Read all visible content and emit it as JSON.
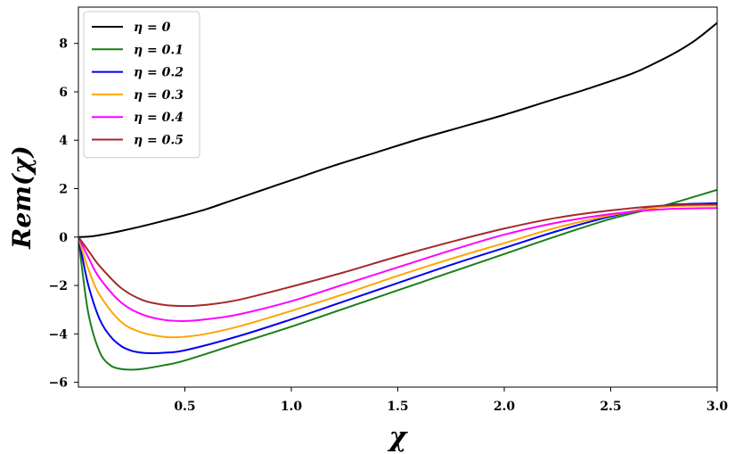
{
  "chart_data": {
    "type": "line",
    "xlabel": "χ",
    "ylabel": "Rem(χ)",
    "xlim": [
      0.0,
      3.0
    ],
    "ylim": [
      -6.2,
      9.5
    ],
    "xticks": [
      0.5,
      1.0,
      1.5,
      2.0,
      2.5,
      3.0
    ],
    "xtick_labels": [
      "0.5",
      "1.0",
      "1.5",
      "2.0",
      "2.5",
      "3.0"
    ],
    "yticks": [
      -6,
      -4,
      -2,
      0,
      2,
      4,
      6,
      8
    ],
    "ytick_labels": [
      "−6",
      "−4",
      "−2",
      "0",
      "2",
      "4",
      "6",
      "8"
    ],
    "grid": false,
    "legend_position": "top-left",
    "series": [
      {
        "name": "η = 0",
        "color": "#000000",
        "x": [
          0.0,
          0.05,
          0.1,
          0.2,
          0.3,
          0.4,
          0.5,
          0.6,
          0.7,
          0.8,
          0.9,
          1.0,
          1.2,
          1.4,
          1.6,
          1.8,
          2.0,
          2.2,
          2.4,
          2.6,
          2.7,
          2.8,
          2.9,
          3.0
        ],
        "y": [
          0.0,
          0.02,
          0.08,
          0.25,
          0.45,
          0.67,
          0.9,
          1.15,
          1.45,
          1.75,
          2.05,
          2.35,
          2.95,
          3.5,
          4.05,
          4.55,
          5.05,
          5.6,
          6.15,
          6.75,
          7.15,
          7.6,
          8.15,
          8.85
        ]
      },
      {
        "name": "η = 0.1",
        "color": "#1a7f1a",
        "x": [
          0.0,
          0.02,
          0.05,
          0.1,
          0.15,
          0.2,
          0.25,
          0.3,
          0.4,
          0.5,
          0.75,
          1.0,
          1.25,
          1.5,
          1.75,
          2.0,
          2.25,
          2.5,
          2.75,
          3.0
        ],
        "y": [
          0.0,
          -1.5,
          -3.3,
          -4.75,
          -5.3,
          -5.45,
          -5.48,
          -5.45,
          -5.3,
          -5.1,
          -4.4,
          -3.7,
          -2.95,
          -2.2,
          -1.45,
          -0.7,
          0.05,
          0.75,
          1.3,
          1.95
        ]
      },
      {
        "name": "η = 0.2",
        "color": "#0000ee",
        "x": [
          0.0,
          0.02,
          0.05,
          0.1,
          0.15,
          0.2,
          0.25,
          0.3,
          0.35,
          0.4,
          0.5,
          0.75,
          1.0,
          1.25,
          1.5,
          1.75,
          2.0,
          2.25,
          2.5,
          2.75,
          3.0
        ],
        "y": [
          0.0,
          -0.9,
          -2.1,
          -3.4,
          -4.1,
          -4.5,
          -4.7,
          -4.78,
          -4.8,
          -4.78,
          -4.68,
          -4.1,
          -3.4,
          -2.65,
          -1.9,
          -1.15,
          -0.45,
          0.25,
          0.85,
          1.3,
          1.4
        ]
      },
      {
        "name": "η = 0.3",
        "color": "#ffa500",
        "x": [
          0.0,
          0.02,
          0.05,
          0.1,
          0.2,
          0.3,
          0.4,
          0.45,
          0.5,
          0.6,
          0.75,
          1.0,
          1.25,
          1.5,
          1.75,
          2.0,
          2.25,
          2.5,
          2.75,
          3.0
        ],
        "y": [
          0.0,
          -0.6,
          -1.4,
          -2.4,
          -3.5,
          -3.95,
          -4.12,
          -4.14,
          -4.12,
          -4.0,
          -3.7,
          -3.05,
          -2.35,
          -1.6,
          -0.9,
          -0.25,
          0.4,
          0.9,
          1.25,
          1.3
        ]
      },
      {
        "name": "η = 0.4",
        "color": "#ff00ff",
        "x": [
          0.0,
          0.05,
          0.1,
          0.2,
          0.3,
          0.4,
          0.5,
          0.6,
          0.75,
          1.0,
          1.25,
          1.5,
          1.75,
          2.0,
          2.25,
          2.5,
          2.75,
          3.0
        ],
        "y": [
          0.0,
          -0.9,
          -1.7,
          -2.7,
          -3.2,
          -3.42,
          -3.47,
          -3.4,
          -3.2,
          -2.65,
          -1.95,
          -1.25,
          -0.55,
          0.1,
          0.6,
          0.95,
          1.15,
          1.2
        ]
      },
      {
        "name": "η = 0.5",
        "color": "#a52a2a",
        "x": [
          0.0,
          0.05,
          0.1,
          0.2,
          0.3,
          0.4,
          0.5,
          0.6,
          0.75,
          1.0,
          1.25,
          1.5,
          1.75,
          2.0,
          2.25,
          2.5,
          2.75,
          3.0
        ],
        "y": [
          0.0,
          -0.6,
          -1.2,
          -2.1,
          -2.6,
          -2.8,
          -2.85,
          -2.8,
          -2.6,
          -2.05,
          -1.45,
          -0.8,
          -0.2,
          0.35,
          0.8,
          1.1,
          1.3,
          1.35
        ]
      }
    ]
  }
}
